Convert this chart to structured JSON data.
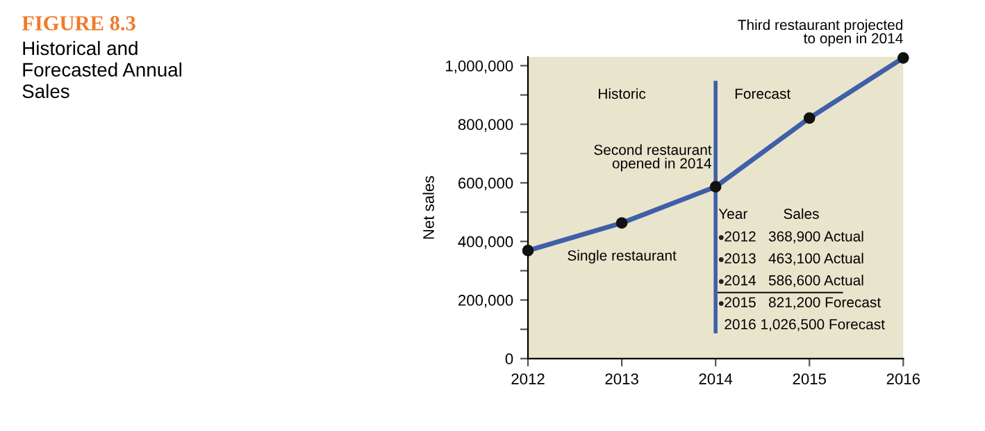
{
  "chart_data": {
    "type": "line",
    "title": "FIGURE 8.3",
    "subtitle": "Historical and\nForecasted Annual\nSales",
    "ylabel": "Net sales",
    "x": [
      2012,
      2013,
      2014,
      2015,
      2016
    ],
    "series": [
      {
        "color": "#3f5fa8",
        "values": [
          368900,
          463100,
          586600,
          821200,
          1026500
        ]
      }
    ],
    "marker": "circle",
    "line_style": "solid",
    "grid": false,
    "legend": false,
    "xlim": [
      2012,
      2016
    ],
    "xticks": [
      2012,
      2013,
      2014,
      2015,
      2016
    ],
    "ylim": [
      0,
      1030000
    ],
    "yticks": [
      {
        "value": 0,
        "label": "0"
      },
      {
        "value": 100000,
        "label": null
      },
      {
        "value": 200000,
        "label": "200,000"
      },
      {
        "value": 300000,
        "label": null
      },
      {
        "value": 400000,
        "label": "400,000"
      },
      {
        "value": 500000,
        "label": null
      },
      {
        "value": 600000,
        "label": "600,000"
      },
      {
        "value": 700000,
        "label": null
      },
      {
        "value": 800000,
        "label": "800,000"
      },
      {
        "value": 900000,
        "label": null
      },
      {
        "value": 1000000,
        "label": "1,000,000"
      }
    ],
    "ref_lines": [
      {
        "axis": "x",
        "value": 2014,
        "color": "#3f5fa8"
      }
    ],
    "annotations": [
      {
        "text": "Third restaurant projected\nto open in 2014",
        "x": 2016,
        "y": 1026500
      },
      {
        "text": "Second restaurant\nopened in 2014",
        "x": 2014,
        "y": 586600
      },
      {
        "text": "Single restaurant",
        "x": 2013,
        "y": 463100
      },
      "Historic",
      "Forecast",
      "Year",
      "Sales",
      "2012   368,900 Actual",
      "2013   463,100 Actual",
      "2014   586,600 Actual",
      "2015   821,200 Forecast",
      "2016 1,026,500 Forecast"
    ]
  }
}
